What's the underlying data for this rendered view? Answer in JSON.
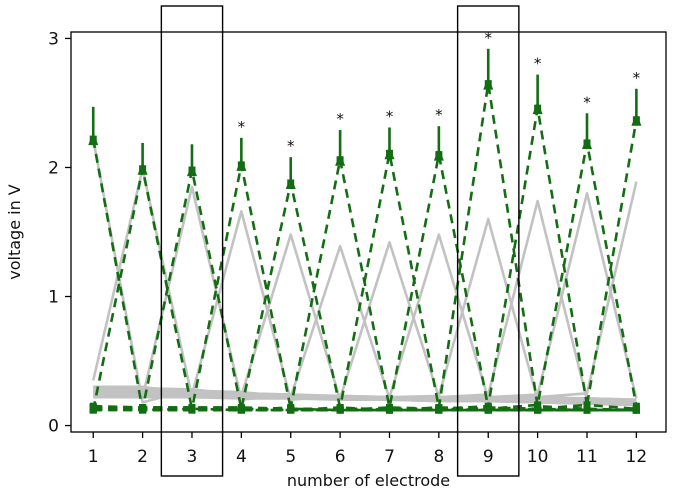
{
  "chart_data": {
    "type": "line",
    "title": "",
    "xlabel": "number of electrode",
    "ylabel": "voltage in V",
    "categories": [
      "1",
      "2",
      "3",
      "4",
      "5",
      "6",
      "7",
      "8",
      "9",
      "10",
      "11",
      "12"
    ],
    "x": [
      1,
      2,
      3,
      4,
      5,
      6,
      7,
      8,
      9,
      10,
      11,
      12
    ],
    "xlim": [
      0.55,
      12.6
    ],
    "ylim": [
      -0.05,
      3.05
    ],
    "yticks": [
      0,
      1,
      2,
      3
    ],
    "highlight_boxes": [
      3,
      9
    ],
    "colors": {
      "green": "#136d13",
      "gray": "#c2c2c2",
      "gray_light": "#d9d9d9",
      "axis": "#000000"
    },
    "series": [
      {
        "group": "green",
        "values": [
          2.22,
          0.12,
          0.13,
          0.12,
          0.12,
          0.12,
          0.12,
          0.12,
          0.12,
          0.12,
          0.12,
          0.12
        ]
      },
      {
        "group": "green",
        "values": [
          0.12,
          1.99,
          0.13,
          0.12,
          0.12,
          0.12,
          0.12,
          0.12,
          0.12,
          0.12,
          0.12,
          0.12
        ]
      },
      {
        "group": "green",
        "values": [
          0.12,
          0.13,
          1.98,
          0.13,
          0.12,
          0.12,
          0.12,
          0.12,
          0.12,
          0.12,
          0.12,
          0.12
        ]
      },
      {
        "group": "green",
        "values": [
          0.12,
          0.12,
          0.13,
          2.02,
          0.13,
          0.12,
          0.12,
          0.12,
          0.12,
          0.12,
          0.12,
          0.12
        ]
      },
      {
        "group": "green",
        "values": [
          0.13,
          0.12,
          0.12,
          0.13,
          1.88,
          0.14,
          0.12,
          0.12,
          0.12,
          0.12,
          0.12,
          0.12
        ]
      },
      {
        "group": "green",
        "values": [
          0.13,
          0.12,
          0.12,
          0.12,
          0.14,
          2.06,
          0.14,
          0.13,
          0.12,
          0.12,
          0.12,
          0.12
        ]
      },
      {
        "group": "green",
        "values": [
          0.13,
          0.13,
          0.12,
          0.12,
          0.12,
          0.14,
          2.11,
          0.14,
          0.13,
          0.12,
          0.12,
          0.12
        ]
      },
      {
        "group": "green",
        "values": [
          0.13,
          0.13,
          0.13,
          0.12,
          0.12,
          0.12,
          0.14,
          2.1,
          0.14,
          0.13,
          0.12,
          0.12
        ]
      },
      {
        "group": "green",
        "values": [
          0.14,
          0.13,
          0.13,
          0.13,
          0.12,
          0.12,
          0.12,
          0.14,
          2.65,
          0.15,
          0.13,
          0.12
        ]
      },
      {
        "group": "green",
        "values": [
          0.14,
          0.14,
          0.13,
          0.13,
          0.13,
          0.12,
          0.12,
          0.13,
          0.15,
          2.46,
          0.16,
          0.13
        ]
      },
      {
        "group": "green",
        "values": [
          0.14,
          0.14,
          0.14,
          0.13,
          0.13,
          0.13,
          0.12,
          0.12,
          0.13,
          0.16,
          2.19,
          0.15
        ]
      },
      {
        "group": "green",
        "values": [
          0.15,
          0.14,
          0.14,
          0.14,
          0.13,
          0.13,
          0.13,
          0.13,
          0.12,
          0.13,
          0.16,
          2.37
        ]
      },
      {
        "group": "gray",
        "values": [
          2.22,
          0.18,
          0.28,
          0.24,
          0.22,
          0.21,
          0.2,
          0.19,
          0.19,
          0.18,
          0.17,
          0.16
        ]
      },
      {
        "group": "gray",
        "values": [
          0.35,
          1.99,
          0.22,
          0.24,
          0.22,
          0.21,
          0.2,
          0.19,
          0.19,
          0.18,
          0.17,
          0.16
        ]
      },
      {
        "group": "gray",
        "values": [
          0.28,
          0.22,
          1.85,
          0.2,
          0.24,
          0.22,
          0.21,
          0.2,
          0.19,
          0.18,
          0.17,
          0.16
        ]
      },
      {
        "group": "gray",
        "values": [
          0.3,
          0.3,
          0.24,
          1.66,
          0.2,
          0.23,
          0.22,
          0.21,
          0.2,
          0.19,
          0.18,
          0.17
        ]
      },
      {
        "group": "gray",
        "values": [
          0.3,
          0.29,
          0.28,
          0.23,
          1.48,
          0.2,
          0.22,
          0.21,
          0.2,
          0.19,
          0.18,
          0.17
        ]
      },
      {
        "group": "gray",
        "values": [
          0.28,
          0.28,
          0.27,
          0.26,
          0.22,
          1.39,
          0.21,
          0.22,
          0.21,
          0.2,
          0.19,
          0.18
        ]
      },
      {
        "group": "gray",
        "values": [
          0.27,
          0.27,
          0.26,
          0.25,
          0.24,
          0.21,
          1.42,
          0.22,
          0.22,
          0.21,
          0.2,
          0.19
        ]
      },
      {
        "group": "gray",
        "values": [
          0.26,
          0.26,
          0.25,
          0.25,
          0.24,
          0.23,
          0.22,
          1.48,
          0.21,
          0.22,
          0.21,
          0.2
        ]
      },
      {
        "group": "gray",
        "values": [
          0.25,
          0.25,
          0.24,
          0.24,
          0.23,
          0.22,
          0.22,
          0.23,
          1.6,
          0.2,
          0.21,
          0.2
        ]
      },
      {
        "group": "gray",
        "values": [
          0.24,
          0.24,
          0.23,
          0.23,
          0.22,
          0.22,
          0.21,
          0.22,
          0.24,
          1.74,
          0.2,
          0.2
        ]
      },
      {
        "group": "gray",
        "values": [
          0.23,
          0.23,
          0.22,
          0.22,
          0.22,
          0.21,
          0.21,
          0.21,
          0.22,
          0.24,
          1.8,
          0.21
        ]
      },
      {
        "group": "gray",
        "values": [
          0.22,
          0.22,
          0.22,
          0.21,
          0.21,
          0.2,
          0.2,
          0.2,
          0.21,
          0.22,
          0.25,
          1.89
        ]
      }
    ],
    "error_bars": [
      {
        "x": 1,
        "y": 2.22,
        "upper": 2.47,
        "significant": false
      },
      {
        "x": 2,
        "y": 1.99,
        "upper": 2.19,
        "significant": false
      },
      {
        "x": 3,
        "y": 1.98,
        "upper": 2.18,
        "significant": false
      },
      {
        "x": 4,
        "y": 2.02,
        "upper": 2.23,
        "significant": true
      },
      {
        "x": 5,
        "y": 1.88,
        "upper": 2.08,
        "significant": true
      },
      {
        "x": 6,
        "y": 2.06,
        "upper": 2.29,
        "significant": true
      },
      {
        "x": 7,
        "y": 2.11,
        "upper": 2.31,
        "significant": true
      },
      {
        "x": 8,
        "y": 2.1,
        "upper": 2.32,
        "significant": true
      },
      {
        "x": 9,
        "y": 2.65,
        "upper": 2.92,
        "significant": true
      },
      {
        "x": 10,
        "y": 2.46,
        "upper": 2.72,
        "significant": true
      },
      {
        "x": 11,
        "y": 2.19,
        "upper": 2.42,
        "significant": true
      },
      {
        "x": 12,
        "y": 2.37,
        "upper": 2.61,
        "significant": true
      }
    ],
    "significance_marker": "*"
  }
}
